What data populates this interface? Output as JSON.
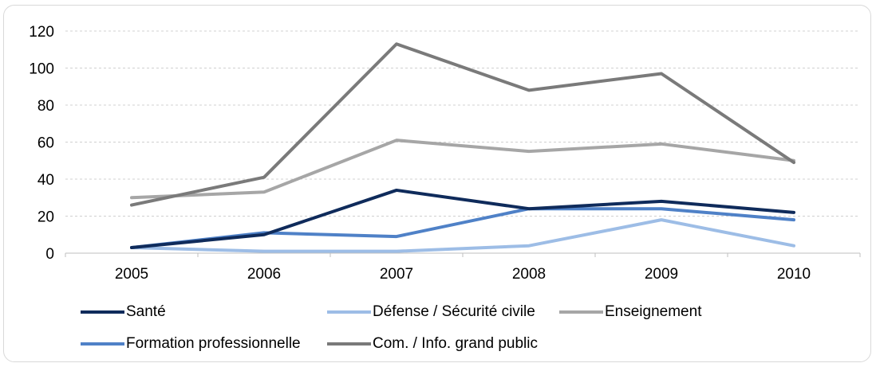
{
  "chart_data": {
    "type": "line",
    "title": "",
    "xlabel": "",
    "ylabel": "",
    "x": [
      "2005",
      "2006",
      "2007",
      "2008",
      "2009",
      "2010"
    ],
    "ylim": [
      0,
      120
    ],
    "yticks": [
      "0",
      "20",
      "40",
      "60",
      "80",
      "100",
      "120"
    ],
    "grid": "horizontal dashed",
    "legend_position": "bottom",
    "series": [
      {
        "name": "Santé",
        "color": "#0f2b5b",
        "values": [
          3,
          10,
          34,
          24,
          28,
          22
        ]
      },
      {
        "name": "Défense / Sécurité civile",
        "color": "#9dbde6",
        "values": [
          3,
          1,
          1,
          4,
          18,
          4
        ]
      },
      {
        "name": "Enseignement",
        "color": "#a6a6a6",
        "values": [
          30,
          33,
          61,
          55,
          59,
          50
        ]
      },
      {
        "name": "Formation professionnelle",
        "color": "#4f81c7",
        "values": [
          3,
          11,
          9,
          24,
          24,
          18
        ]
      },
      {
        "name": "Com. / Info. grand public",
        "color": "#7a7a7a",
        "values": [
          26,
          41,
          113,
          88,
          97,
          49
        ]
      }
    ]
  }
}
